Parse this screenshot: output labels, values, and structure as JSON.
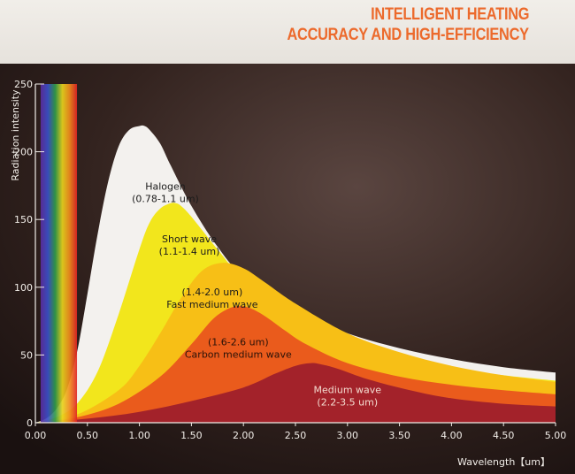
{
  "header": {
    "title_line1": "INTELLIGENT HEATING",
    "title_line2": "ACCURACY AND HIGH-EFFICIENCY"
  },
  "chart_data": {
    "type": "area",
    "ylabel": "Radiation intensity",
    "xlabel": "Wavelength【um】",
    "xlim": [
      0,
      5
    ],
    "ylim": [
      0,
      250
    ],
    "x_ticks": [
      "0.00",
      "0.50",
      "1.00",
      "1.50",
      "2.00",
      "2.50",
      "3.00",
      "3.50",
      "4.00",
      "4.50",
      "5.00"
    ],
    "y_ticks": [
      "0",
      "50",
      "100",
      "150",
      "200",
      "250"
    ],
    "spectrum_band": {
      "x_range": [
        0.05,
        0.4
      ],
      "colors": [
        "#5b2c9e",
        "#3a4fc8",
        "#2f9b4a",
        "#e8d31c",
        "#f08a1c",
        "#e02424"
      ]
    },
    "colors": {
      "background": "#2a1d1b",
      "axis": "#f1ede8"
    },
    "series": [
      {
        "label_line1": "Halogen",
        "label_line2": "(0.78-1.1 um)",
        "label_pos": [
          1.25,
          172
        ],
        "label_color": "#1b1b1b",
        "color": "#f3f1ee",
        "x": [
          0,
          0.1,
          0.2,
          0.3,
          0.4,
          0.5,
          0.6,
          0.7,
          0.8,
          0.9,
          1.0,
          1.05,
          1.1,
          1.2,
          1.3,
          1.5,
          1.75,
          2.0,
          2.5,
          3.0,
          3.5,
          4.0,
          4.5,
          5.0
        ],
        "y": [
          0,
          3,
          10,
          24,
          52,
          95,
          140,
          178,
          204,
          216,
          219,
          219,
          216,
          206,
          190,
          160,
          130,
          108,
          82,
          66,
          55,
          47,
          41,
          37
        ]
      },
      {
        "label_line1": "Short wave",
        "label_line2": "(1.1-1.4 um)",
        "label_pos": [
          1.48,
          133
        ],
        "label_color": "#1b1b1b",
        "color": "#f2e61c",
        "x": [
          0,
          0.2,
          0.4,
          0.6,
          0.8,
          1.0,
          1.1,
          1.2,
          1.3,
          1.35,
          1.4,
          1.5,
          1.75,
          2.0,
          2.5,
          3.0,
          3.5,
          4.0,
          4.5,
          5.0
        ],
        "y": [
          0,
          4,
          14,
          38,
          80,
          128,
          148,
          158,
          162,
          162,
          160,
          152,
          128,
          106,
          75,
          58,
          47,
          40,
          35,
          31
        ]
      },
      {
        "label_line1": "(1.4-2.0 um)",
        "label_line2": "Fast medium wave",
        "label_pos": [
          1.7,
          94
        ],
        "label_color": "#1b1b1b",
        "color": "#f7bf16",
        "x": [
          0,
          0.4,
          0.8,
          1.0,
          1.2,
          1.4,
          1.6,
          1.8,
          2.0,
          2.2,
          2.5,
          3.0,
          3.5,
          4.0,
          4.5,
          5.0
        ],
        "y": [
          0,
          6,
          24,
          42,
          66,
          92,
          112,
          118,
          114,
          104,
          88,
          66,
          52,
          42,
          35,
          30
        ]
      },
      {
        "label_line1": "(1.6-2.6 um)",
        "label_line2": "Carbon medium wave",
        "label_pos": [
          1.95,
          57
        ],
        "label_color": "#2a1208",
        "color": "#ea5b1c",
        "x": [
          0,
          0.4,
          0.8,
          1.2,
          1.5,
          1.7,
          1.85,
          1.95,
          2.05,
          2.2,
          2.4,
          2.6,
          3.0,
          3.5,
          4.0,
          4.5,
          5.0
        ],
        "y": [
          0,
          4,
          14,
          34,
          58,
          76,
          84,
          86,
          85,
          79,
          68,
          58,
          44,
          34,
          28,
          24,
          21
        ]
      },
      {
        "label_line1": "Medium wave",
        "label_line2": "(2.2-3.5 um)",
        "label_pos": [
          3.0,
          22
        ],
        "label_color": "#f4dcd0",
        "color": "#a3222a",
        "x": [
          0,
          0.5,
          1.0,
          1.5,
          2.0,
          2.3,
          2.5,
          2.65,
          2.75,
          2.9,
          3.2,
          3.6,
          4.0,
          4.5,
          5.0
        ],
        "y": [
          0,
          3,
          8,
          16,
          26,
          36,
          42,
          44,
          43,
          40,
          32,
          24,
          18,
          14,
          12
        ]
      }
    ]
  }
}
